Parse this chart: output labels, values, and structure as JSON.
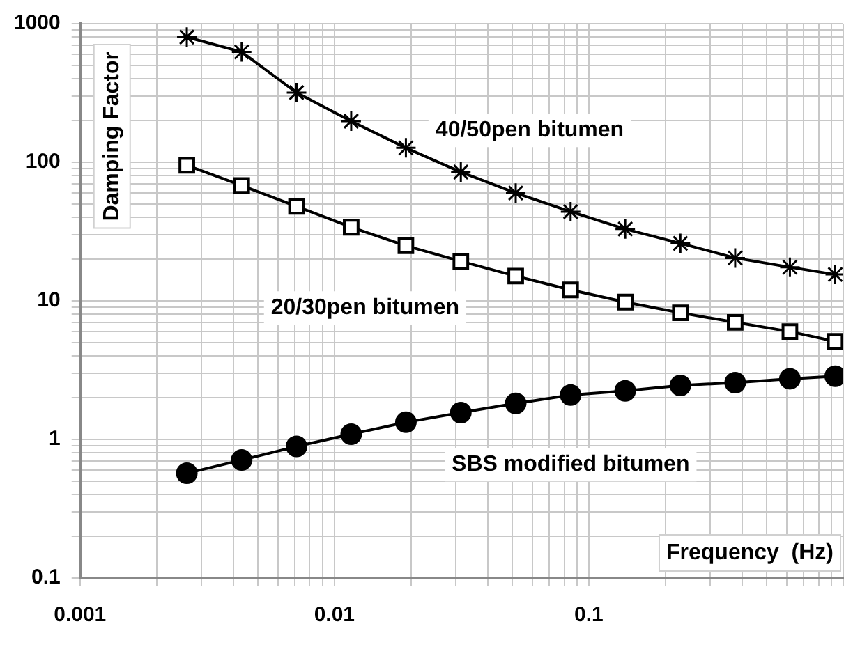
{
  "chart_data": {
    "type": "line",
    "xlabel": "Frequency  (Hz)",
    "ylabel": "Damping Factor",
    "x": [
      0.00263,
      0.00432,
      0.0071,
      0.01164,
      0.0191,
      0.0314,
      0.0516,
      0.0848,
      0.139,
      0.229,
      0.376,
      0.617,
      0.93
    ],
    "series": [
      {
        "name": "40/50pen bitumen",
        "color": "#000000",
        "marker": "cross",
        "values": [
          800,
          625,
          318,
          198,
          127,
          85,
          60,
          44,
          33,
          26,
          20.4,
          17.5,
          15.5
        ]
      },
      {
        "name": "20/30pen bitumen",
        "color": "#000000",
        "marker": "square",
        "values": [
          95,
          68,
          48,
          34,
          25,
          19.3,
          15.1,
          12,
          9.8,
          8.2,
          7,
          6,
          5.1
        ]
      },
      {
        "name": "SBS modified bitumen",
        "color": "#000000",
        "marker": "circle",
        "values": [
          0.57,
          0.71,
          0.89,
          1.09,
          1.33,
          1.56,
          1.82,
          2.09,
          2.24,
          2.45,
          2.57,
          2.74,
          2.86
        ]
      }
    ],
    "log": "xy",
    "xlim": [
      0.001,
      1
    ],
    "ylim": [
      0.1,
      1000
    ],
    "xticks": [
      0.001,
      0.01,
      0.1
    ],
    "yticks": [
      0.1,
      1,
      10,
      100,
      1000
    ],
    "grid": true,
    "legend": false
  }
}
